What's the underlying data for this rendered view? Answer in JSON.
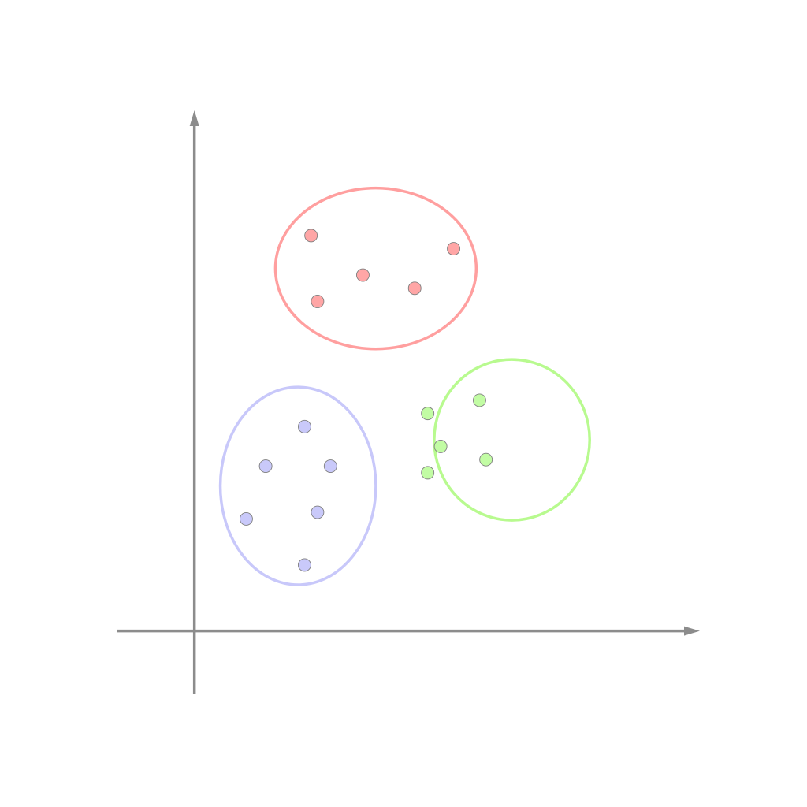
{
  "colors": {
    "axis": "#8c8c8c",
    "background": "#ffffff"
  },
  "chart_data": {
    "type": "scatter",
    "title": "",
    "xlabel": "",
    "ylabel": "",
    "grid": false,
    "legend": "none",
    "xlim": [
      -1.2,
      7.8
    ],
    "ylim": [
      -0.95,
      7.9
    ],
    "clusters": [
      {
        "id": "red",
        "color": "#ff9f9f",
        "fill": "#ffa6a6",
        "ellipse": {
          "cx": 2.8,
          "cy": 5.5,
          "rx": 1.55,
          "ry": 1.22
        },
        "points": [
          {
            "x": 1.8,
            "y": 6.0
          },
          {
            "x": 2.6,
            "y": 5.4
          },
          {
            "x": 3.4,
            "y": 5.2
          },
          {
            "x": 4.0,
            "y": 5.8
          },
          {
            "x": 1.9,
            "y": 5.0
          }
        ]
      },
      {
        "id": "blue",
        "color": "#c8c8fa",
        "fill": "#c9c9fa",
        "ellipse": {
          "cx": 1.6,
          "cy": 2.2,
          "rx": 1.2,
          "ry": 1.5
        },
        "points": [
          {
            "x": 1.7,
            "y": 3.1
          },
          {
            "x": 2.1,
            "y": 2.5
          },
          {
            "x": 1.9,
            "y": 1.8
          },
          {
            "x": 1.1,
            "y": 2.5
          },
          {
            "x": 0.8,
            "y": 1.7
          },
          {
            "x": 1.7,
            "y": 1.0
          }
        ]
      },
      {
        "id": "green",
        "color": "#b8fa8f",
        "fill": "#c2fca4",
        "ellipse": {
          "cx": 4.9,
          "cy": 2.9,
          "rx": 1.2,
          "ry": 1.22
        },
        "points": [
          {
            "x": 3.6,
            "y": 3.3
          },
          {
            "x": 4.4,
            "y": 3.5
          },
          {
            "x": 3.8,
            "y": 2.8
          },
          {
            "x": 4.5,
            "y": 2.6
          },
          {
            "x": 3.6,
            "y": 2.4
          }
        ]
      }
    ]
  }
}
